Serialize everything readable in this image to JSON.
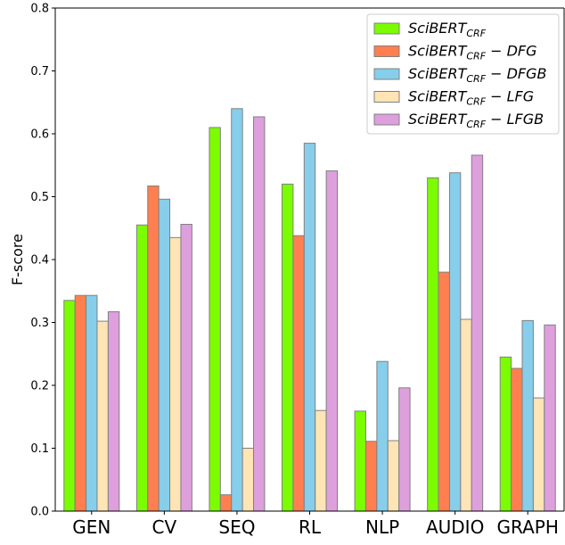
{
  "chart_data": {
    "type": "bar",
    "categories": [
      "GEN",
      "CV",
      "SEQ",
      "RL",
      "NLP",
      "AUDIO",
      "GRAPH"
    ],
    "ylabel": "F-score",
    "xlabel": "",
    "ylim": [
      0,
      0.8
    ],
    "yticks": [
      "0.0",
      "0.1",
      "0.2",
      "0.3",
      "0.4",
      "0.5",
      "0.6",
      "0.7",
      "0.8"
    ],
    "legend_position": "top-right",
    "grid": false,
    "series": [
      {
        "name": "SciBERT_CRF",
        "legend": {
          "base": "SciBERT",
          "sub": "CRF",
          "suffix": ""
        },
        "color": "#7cfc00",
        "values": [
          0.335,
          0.455,
          0.61,
          0.52,
          0.159,
          0.53,
          0.245
        ]
      },
      {
        "name": "SciBERT_CRF − DFG",
        "legend": {
          "base": "SciBERT",
          "sub": "CRF",
          "suffix": " − DFG"
        },
        "color": "#ff7f50",
        "values": [
          0.343,
          0.517,
          0.026,
          0.438,
          0.111,
          0.38,
          0.227
        ]
      },
      {
        "name": "SciBERT_CRF − DFGB",
        "legend": {
          "base": "SciBERT",
          "sub": "CRF",
          "suffix": " − DFGB"
        },
        "color": "#87ceeb",
        "values": [
          0.343,
          0.496,
          0.64,
          0.585,
          0.238,
          0.538,
          0.303
        ]
      },
      {
        "name": "SciBERT_CRF − LFG",
        "legend": {
          "base": "SciBERT",
          "sub": "CRF",
          "suffix": " − LFG"
        },
        "color": "#ffe4b5",
        "values": [
          0.302,
          0.435,
          0.1,
          0.16,
          0.112,
          0.305,
          0.18
        ]
      },
      {
        "name": "SciBERT_CRF − LFGB",
        "legend": {
          "base": "SciBERT",
          "sub": "CRF",
          "suffix": " − LFGB"
        },
        "color": "#dda0dd",
        "values": [
          0.317,
          0.456,
          0.627,
          0.541,
          0.196,
          0.566,
          0.296
        ]
      }
    ]
  }
}
